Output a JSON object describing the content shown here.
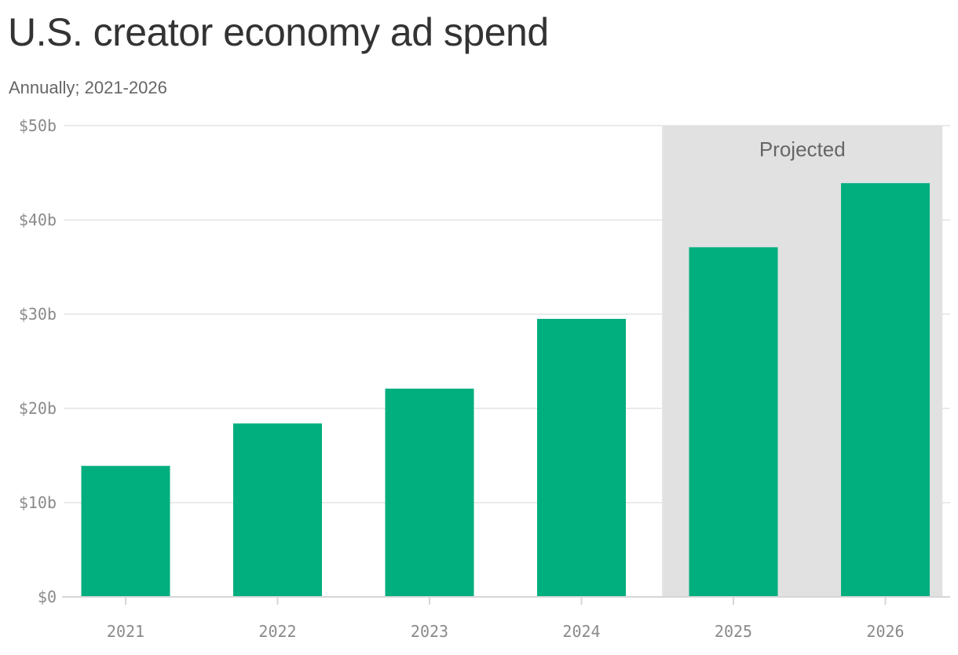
{
  "chart_data": {
    "type": "bar",
    "title": "U.S. creator economy ad spend",
    "subtitle": "Annually; 2021-2026",
    "categories": [
      "2021",
      "2022",
      "2023",
      "2024",
      "2025",
      "2026"
    ],
    "values": [
      13.9,
      18.4,
      22.1,
      29.5,
      37.1,
      43.9
    ],
    "unit": "$ billions",
    "ylim": [
      0,
      50
    ],
    "yticks": [
      0,
      10,
      20,
      30,
      40,
      50
    ],
    "ytick_labels": [
      "$0",
      "$10b",
      "$20b",
      "$30b",
      "$40b",
      "$50b"
    ],
    "xlabel": "",
    "ylabel": "",
    "grid": true,
    "bar_color": "#00ae7e",
    "annotations": [
      {
        "text": "Projected",
        "applies_to": [
          "2025",
          "2026"
        ],
        "background": "#e1e1e1"
      }
    ]
  }
}
